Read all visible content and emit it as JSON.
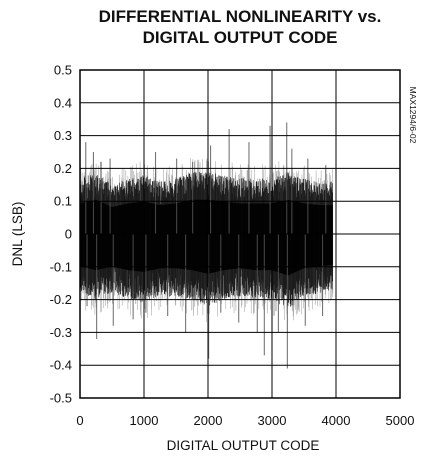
{
  "chart_data": {
    "type": "area",
    "title": "DIFFERENTIAL NONLINEARITY vs.\nDIGITAL OUTPUT CODE",
    "title_lines": [
      "DIFFERENTIAL NONLINEARITY vs.",
      "DIGITAL OUTPUT CODE"
    ],
    "xlabel": "DIGITAL OUTPUT CODE",
    "ylabel": "DNL (LSB)",
    "figure_tag": "MAX1294/6-02",
    "xlim": [
      0,
      5000
    ],
    "ylim": [
      -0.5,
      0.5
    ],
    "x_ticks": [
      0,
      1000,
      2000,
      3000,
      4000,
      5000
    ],
    "x_tick_labels": [
      "0",
      "1000",
      "2000",
      "3000",
      "4000",
      "5000"
    ],
    "y_ticks": [
      0.5,
      0.4,
      0.3,
      0.2,
      0.1,
      0,
      -0.1,
      -0.2,
      -0.3,
      -0.4,
      -0.5
    ],
    "y_tick_labels": [
      "0.5",
      "0.4",
      "0.3",
      "0.2",
      "0.1",
      "0",
      "-0.1",
      "-0.2",
      "-0.3",
      "-0.4",
      "-0.5"
    ],
    "grid": true,
    "series": [
      {
        "color": "#000000",
        "x_range": [
          0,
          3950
        ],
        "envelope": {
          "x": [
            0,
            250,
            500,
            750,
            1000,
            1250,
            1500,
            1750,
            2000,
            2250,
            2500,
            2750,
            3000,
            3250,
            3500,
            3750,
            3950
          ],
          "upper": [
            0.17,
            0.19,
            0.15,
            0.17,
            0.18,
            0.16,
            0.17,
            0.19,
            0.19,
            0.18,
            0.17,
            0.17,
            0.17,
            0.19,
            0.17,
            0.16,
            0.16
          ],
          "lower": [
            -0.18,
            -0.2,
            -0.18,
            -0.2,
            -0.21,
            -0.19,
            -0.19,
            -0.2,
            -0.22,
            -0.2,
            -0.19,
            -0.2,
            -0.2,
            -0.23,
            -0.19,
            -0.18,
            -0.17
          ]
        },
        "spikes": [
          {
            "x": 90,
            "y": 0.28
          },
          {
            "x": 210,
            "y": 0.25
          },
          {
            "x": 330,
            "y": 0.22
          },
          {
            "x": 470,
            "y": 0.23
          },
          {
            "x": 1180,
            "y": 0.25
          },
          {
            "x": 1510,
            "y": 0.23
          },
          {
            "x": 1760,
            "y": 0.22
          },
          {
            "x": 2040,
            "y": 0.27
          },
          {
            "x": 2330,
            "y": 0.32
          },
          {
            "x": 2640,
            "y": 0.28
          },
          {
            "x": 2970,
            "y": 0.33
          },
          {
            "x": 3230,
            "y": 0.34
          },
          {
            "x": 3310,
            "y": 0.26
          },
          {
            "x": 3560,
            "y": 0.23
          },
          {
            "x": 3840,
            "y": 0.21
          },
          {
            "x": 110,
            "y": -0.22
          },
          {
            "x": 260,
            "y": -0.32
          },
          {
            "x": 520,
            "y": -0.28
          },
          {
            "x": 830,
            "y": -0.26
          },
          {
            "x": 1030,
            "y": -0.24
          },
          {
            "x": 1370,
            "y": -0.25
          },
          {
            "x": 1650,
            "y": -0.3
          },
          {
            "x": 2010,
            "y": -0.38
          },
          {
            "x": 2200,
            "y": -0.24
          },
          {
            "x": 2480,
            "y": -0.27
          },
          {
            "x": 2770,
            "y": -0.3
          },
          {
            "x": 2880,
            "y": -0.37
          },
          {
            "x": 3100,
            "y": -0.3
          },
          {
            "x": 3240,
            "y": -0.41
          },
          {
            "x": 3520,
            "y": -0.28
          },
          {
            "x": 3790,
            "y": -0.25
          }
        ]
      }
    ]
  }
}
